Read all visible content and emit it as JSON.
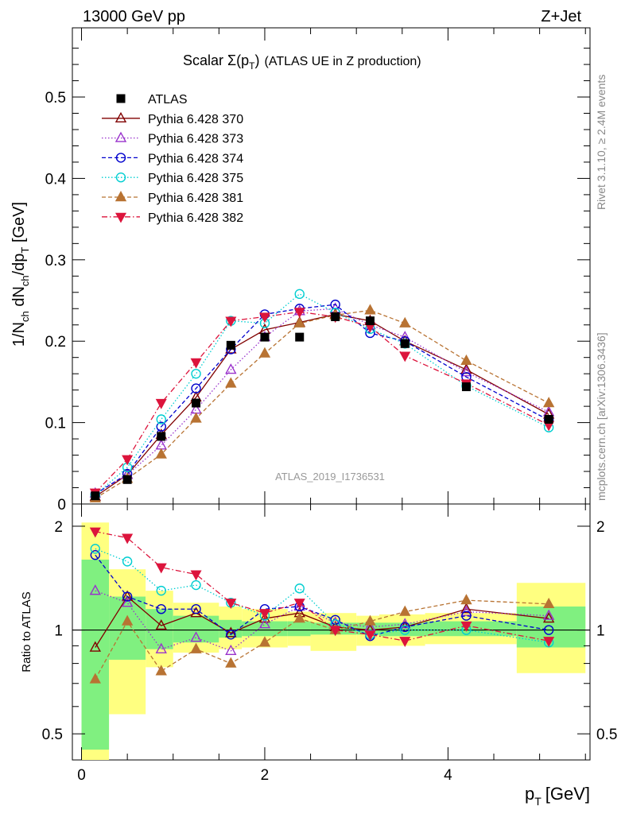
{
  "header": {
    "energy_label": "13000 GeV pp",
    "process_label": "Z+Jet"
  },
  "side_text": {
    "rivet": "Rivet 3.1.10, ≥ 2.4M events",
    "mcplots": "mcplots.cern.ch [arXiv:1306.3436]"
  },
  "chart_data": {
    "type": "line",
    "title": "Scalar Σ(p_T) (ATLAS UE in Z production)",
    "title_main": "Scalar ",
    "title_sigma": "Σ(p",
    "title_sub": "T",
    "title_close": ")",
    "title_rest": "(ATLAS UE in Z production)",
    "analysis_label": "ATLAS_2019_I1736531",
    "xlabel": "p_T [GeV]",
    "xlabel_main": "p",
    "xlabel_sub": "T",
    "xlabel_unit": "[GeV]",
    "ylabel": "1/N_ch dN_ch/dp_T [GeV]",
    "ylabel_parts": {
      "a": "1/N",
      "b": "ch",
      "c": " dN",
      "d": "ch",
      "e": "/dp",
      "f": "T",
      "g": " [GeV]"
    },
    "ratio_ylabel": "Ratio to ATLAS",
    "xlim": [
      -0.1,
      5.55
    ],
    "ylim": [
      0,
      0.585
    ],
    "ratio_ylim": [
      0.42,
      2.32
    ],
    "x_ticks": [
      "0",
      "2",
      "4"
    ],
    "y_ticks": [
      "0",
      "0.1",
      "0.2",
      "0.3",
      "0.4",
      "0.5"
    ],
    "ratio_ticks": [
      "0.5",
      "1",
      "2"
    ],
    "x": [
      0.15,
      0.5,
      0.87,
      1.25,
      1.63,
      2.0,
      2.38,
      2.77,
      3.15,
      3.53,
      4.2,
      5.1
    ],
    "bins": [
      0,
      0.3,
      0.7,
      1.0,
      1.5,
      1.75,
      2.25,
      2.5,
      3.0,
      3.25,
      3.75,
      4.75,
      5.5
    ],
    "data": {
      "name": "ATLAS",
      "values": [
        0.01,
        0.03,
        0.083,
        0.124,
        0.195,
        0.205,
        0.205,
        0.23,
        0.225,
        0.197,
        0.144,
        0.104
      ]
    },
    "band_green": [
      [
        0.45,
        1.6
      ],
      [
        0.82,
        1.25
      ],
      [
        0.88,
        1.15
      ],
      [
        0.92,
        1.1
      ],
      [
        0.95,
        1.07
      ],
      [
        0.96,
        1.06
      ],
      [
        0.96,
        1.06
      ],
      [
        0.97,
        1.05
      ],
      [
        0.97,
        1.05
      ],
      [
        0.96,
        1.05
      ],
      [
        0.96,
        1.06
      ],
      [
        0.89,
        1.17
      ]
    ],
    "band_yellow": [
      [
        0.3,
        2.05
      ],
      [
        0.57,
        1.5
      ],
      [
        0.78,
        1.3
      ],
      [
        0.86,
        1.2
      ],
      [
        0.88,
        1.17
      ],
      [
        0.89,
        1.15
      ],
      [
        0.9,
        1.13
      ],
      [
        0.87,
        1.12
      ],
      [
        0.9,
        1.1
      ],
      [
        0.9,
        1.11
      ],
      [
        0.91,
        1.12
      ],
      [
        0.75,
        1.37
      ]
    ],
    "series": [
      {
        "name": "Pythia 6.428 370",
        "color": "#800000",
        "dash": "",
        "marker": "triangle-open",
        "values": [
          0.009,
          0.036,
          0.085,
          0.131,
          0.19,
          0.214,
          0.223,
          0.233,
          0.225,
          0.2,
          0.165,
          0.11
        ],
        "ratio": [
          0.89,
          1.25,
          1.03,
          1.12,
          0.98,
          1.08,
          1.12,
          1.02,
          1.0,
          1.02,
          1.15,
          1.08
        ]
      },
      {
        "name": "Pythia 6.428 373",
        "color": "#9932cc",
        "dash": "1.5 2.5",
        "marker": "triangle-open",
        "values": [
          0.013,
          0.036,
          0.072,
          0.116,
          0.165,
          0.205,
          0.237,
          0.24,
          0.22,
          0.205,
          0.162,
          0.113
        ],
        "ratio": [
          1.3,
          1.2,
          0.88,
          0.95,
          0.87,
          1.04,
          1.17,
          1.05,
          1.02,
          1.04,
          1.13,
          1.1
        ]
      },
      {
        "name": "Pythia 6.428 374",
        "color": "#0000cd",
        "dash": "5 3",
        "marker": "circle-open",
        "values": [
          0.012,
          0.037,
          0.095,
          0.142,
          0.19,
          0.233,
          0.24,
          0.245,
          0.21,
          0.2,
          0.156,
          0.103
        ],
        "ratio": [
          1.65,
          1.25,
          1.15,
          1.15,
          0.97,
          1.15,
          1.17,
          1.07,
          0.96,
          1.02,
          1.1,
          1.0
        ]
      },
      {
        "name": "Pythia 6.428 375",
        "color": "#00ced1",
        "dash": "1.5 2.5",
        "marker": "circle-open",
        "values": [
          0.011,
          0.045,
          0.104,
          0.16,
          0.225,
          0.222,
          0.258,
          0.235,
          0.215,
          0.197,
          0.145,
          0.094
        ],
        "ratio": [
          1.72,
          1.58,
          1.3,
          1.35,
          1.2,
          1.1,
          1.32,
          1.04,
          0.97,
          1.0,
          1.0,
          0.92
        ]
      },
      {
        "name": "Pythia 6.428 381",
        "color": "#b87333",
        "dash": "5 3",
        "marker": "triangle-filled",
        "values": [
          0.007,
          0.031,
          0.061,
          0.105,
          0.148,
          0.185,
          0.222,
          0.232,
          0.238,
          0.222,
          0.176,
          0.124
        ],
        "ratio": [
          0.72,
          1.06,
          0.76,
          0.88,
          0.8,
          0.92,
          1.08,
          1.0,
          1.06,
          1.13,
          1.22,
          1.19
        ]
      },
      {
        "name": "Pythia 6.428 382",
        "color": "#dc143c",
        "dash": "7 3 1.5 3",
        "marker": "triangle-down-filled",
        "values": [
          0.014,
          0.055,
          0.124,
          0.174,
          0.225,
          0.23,
          0.236,
          0.23,
          0.218,
          0.182,
          0.148,
          0.097
        ],
        "ratio": [
          1.93,
          1.85,
          1.52,
          1.45,
          1.2,
          1.12,
          1.2,
          1.0,
          0.97,
          0.93,
          1.03,
          0.93
        ]
      }
    ]
  }
}
